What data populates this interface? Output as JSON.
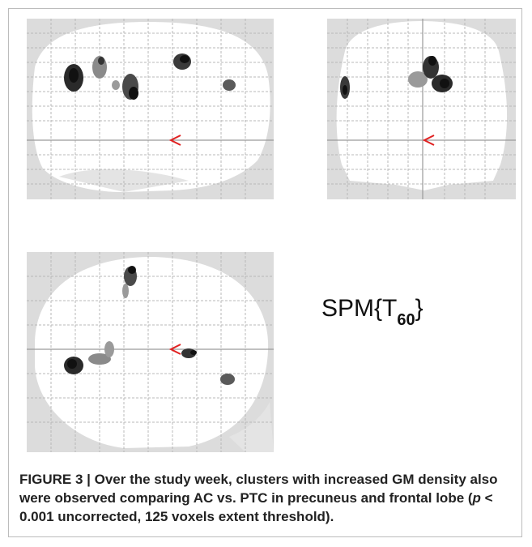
{
  "figure": {
    "stat_label_prefix": "SPM{T",
    "stat_label_sub": "60",
    "stat_label_suffix": "}",
    "caption_label": "FIGURE 3 |",
    "caption_text_1": " Over the study week, clusters with increased GM density also were observed comparing AC vs. PTC in precuneus and frontal lobe (",
    "caption_p": "p",
    "caption_text_2": " < 0.001 uncorrected, 125 voxels extent threshold).",
    "panels": [
      "sagittal",
      "coronal",
      "axial"
    ],
    "colors": {
      "background": "#dcdcdc",
      "brain": "#ffffff",
      "grid": "#b8b8b8",
      "crosshair": "#9a9a9a",
      "marker": "#e02020",
      "blob_dark": "#1a1a1a"
    }
  }
}
